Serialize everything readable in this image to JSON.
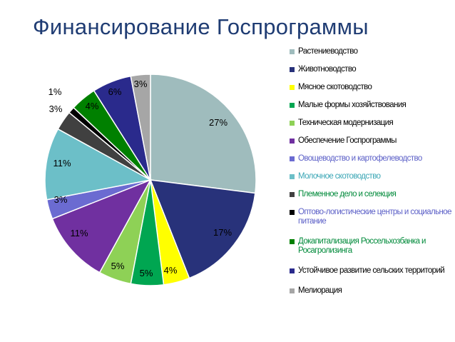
{
  "title": "Финансирование Госпрограммы",
  "chart_data": {
    "type": "pie",
    "title": "Финансирование Госпрограммы",
    "legend_position": "right",
    "series": [
      {
        "name": "Растениеводство",
        "value": 27,
        "label": "27%",
        "color": "#9fbcbd",
        "legend_color": "#000000"
      },
      {
        "name": "Животноводство",
        "value": 17,
        "label": "17%",
        "color": "#28327a",
        "legend_color": "#000000"
      },
      {
        "name": "Мясное скотоводство",
        "value": 4,
        "label": "4%",
        "color": "#ffff00",
        "legend_color": "#000000"
      },
      {
        "name": "Малые формы хозяйствования",
        "value": 5,
        "label": "5%",
        "color": "#00a651",
        "legend_color": "#000000"
      },
      {
        "name": "Техническая модернизация",
        "value": 5,
        "label": "5%",
        "color": "#8ed156",
        "legend_color": "#000000"
      },
      {
        "name": "Обеспечение Госпрограммы",
        "value": 11,
        "label": "11%",
        "color": "#7030a0",
        "legend_color": "#000000"
      },
      {
        "name": "Овощеводство и картофелеводство",
        "value": 3,
        "label": "3%",
        "color": "#6b6bd1",
        "legend_color": "#5b5fc7"
      },
      {
        "name": "Молочное скотоводство",
        "value": 11,
        "label": "11%",
        "color": "#6cbfc8",
        "legend_color": "#3aa6b5"
      },
      {
        "name": "Племенное дело и селекция",
        "value": 3,
        "label": "3%",
        "color": "#404040",
        "legend_color": "#008a3a"
      },
      {
        "name": "Оптово-логистические центры и социальное питание",
        "value": 1,
        "label": "1%",
        "color": "#000000",
        "legend_color": "#5b5fc7"
      },
      {
        "name": "Докапитализация Россельхозбанка и Росагролизинга",
        "value": 4,
        "label": "4%",
        "color": "#008000",
        "legend_color": "#008a3a"
      },
      {
        "name": "Устойчивое развитие сельских территорий",
        "value": 6,
        "label": "6%",
        "color": "#2a2a8c",
        "legend_color": "#000000"
      },
      {
        "name": "Мелиорация",
        "value": 3,
        "label": "3%",
        "color": "#a6a6a6",
        "legend_color": "#000000"
      }
    ]
  }
}
